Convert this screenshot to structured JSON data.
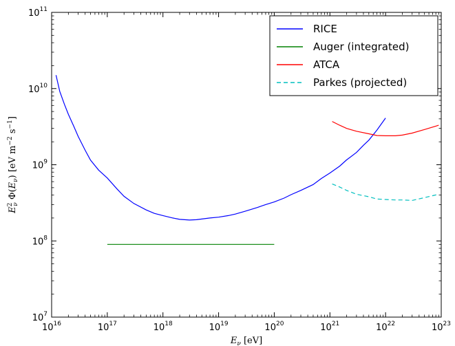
{
  "chart_data": {
    "type": "line",
    "xlabel": "E_ν [eV]",
    "ylabel": "E_ν² Φ(E_ν) [eV m⁻² s⁻¹]",
    "xscale": "log",
    "yscale": "log",
    "xlim": [
      1e+16,
      1e+23
    ],
    "ylim": [
      10000000.0,
      100000000000.0
    ],
    "x_ticks": [
      {
        "value": 1e+16,
        "mant": "10",
        "exp": "16"
      },
      {
        "value": 1e+17,
        "mant": "10",
        "exp": "17"
      },
      {
        "value": 1e+18,
        "mant": "10",
        "exp": "18"
      },
      {
        "value": 1e+19,
        "mant": "10",
        "exp": "19"
      },
      {
        "value": 1e+20,
        "mant": "10",
        "exp": "20"
      },
      {
        "value": 1e+21,
        "mant": "10",
        "exp": "21"
      },
      {
        "value": 1e+22,
        "mant": "10",
        "exp": "22"
      },
      {
        "value": 1e+23,
        "mant": "10",
        "exp": "23"
      }
    ],
    "y_ticks": [
      {
        "value": 10000000.0,
        "mant": "10",
        "exp": "7"
      },
      {
        "value": 100000000.0,
        "mant": "10",
        "exp": "8"
      },
      {
        "value": 1000000000.0,
        "mant": "10",
        "exp": "9"
      },
      {
        "value": 10000000000.0,
        "mant": "10",
        "exp": "10"
      },
      {
        "value": 100000000000.0,
        "mant": "10",
        "exp": "11"
      }
    ],
    "grid": false,
    "legend_position": "top-right",
    "series": [
      {
        "name": "RICE",
        "color": "#0000ff",
        "style": "solid",
        "x": [
          1.2e+16,
          1.4e+16,
          1.7e+16,
          2e+16,
          2.5e+16,
          3e+16,
          4e+16,
          5e+16,
          7e+16,
          1e+17,
          1.5e+17,
          2e+17,
          3e+17,
          5e+17,
          7e+17,
          1e+18,
          1.5e+18,
          2e+18,
          3e+18,
          4e+18,
          5e+18,
          7e+18,
          1e+19,
          1.5e+19,
          2e+19,
          3e+19,
          5e+19,
          7e+19,
          1e+20,
          1.5e+20,
          2e+20,
          3e+20,
          5e+20,
          7e+20,
          1e+21,
          1.5e+21,
          2e+21,
          3e+21,
          4e+21,
          5e+21,
          7e+21,
          1e+22
        ],
        "y": [
          15000000000.0,
          9200000000.0,
          6200000000.0,
          4600000000.0,
          3200000000.0,
          2350000000.0,
          1550000000.0,
          1150000000.0,
          850000000.0,
          670000000.0,
          480000000.0,
          385000000.0,
          310000000.0,
          255000000.0,
          230000000.0,
          215000000.0,
          200000000.0,
          192000000.0,
          188000000.0,
          190000000.0,
          194000000.0,
          200000000.0,
          205000000.0,
          215000000.0,
          225000000.0,
          245000000.0,
          275000000.0,
          300000000.0,
          325000000.0,
          365000000.0,
          405000000.0,
          460000000.0,
          550000000.0,
          660000000.0,
          780000000.0,
          960000000.0,
          1160000000.0,
          1450000000.0,
          1800000000.0,
          2100000000.0,
          2850000000.0,
          4100000000.0
        ]
      },
      {
        "name": "Auger (integrated)",
        "color": "#008000",
        "style": "solid",
        "x": [
          1e+17,
          1e+20
        ],
        "y": [
          90000000.0,
          90000000.0
        ]
      },
      {
        "name": "ATCA",
        "color": "#ff0000",
        "style": "solid",
        "x": [
          1.1e+21,
          1.5e+21,
          2e+21,
          3e+21,
          5e+21,
          7e+21,
          1e+22,
          1.5e+22,
          2e+22,
          3e+22,
          5e+22,
          9e+22
        ],
        "y": [
          3700000000.0,
          3300000000.0,
          3000000000.0,
          2750000000.0,
          2550000000.0,
          2420000000.0,
          2400000000.0,
          2400000000.0,
          2450000000.0,
          2600000000.0,
          2900000000.0,
          3300000000.0
        ]
      },
      {
        "name": "Parkes (projected)",
        "color": "#00bfbf",
        "style": "dashed",
        "x": [
          1.1e+21,
          1.5e+21,
          2e+21,
          3e+21,
          5e+21,
          7e+21,
          1e+22,
          1.5e+22,
          2e+22,
          3e+22,
          5e+22,
          9e+22
        ],
        "y": [
          560000000.0,
          510000000.0,
          460000000.0,
          410000000.0,
          380000000.0,
          355000000.0,
          350000000.0,
          345000000.0,
          345000000.0,
          340000000.0,
          370000000.0,
          410000000.0
        ]
      }
    ]
  }
}
